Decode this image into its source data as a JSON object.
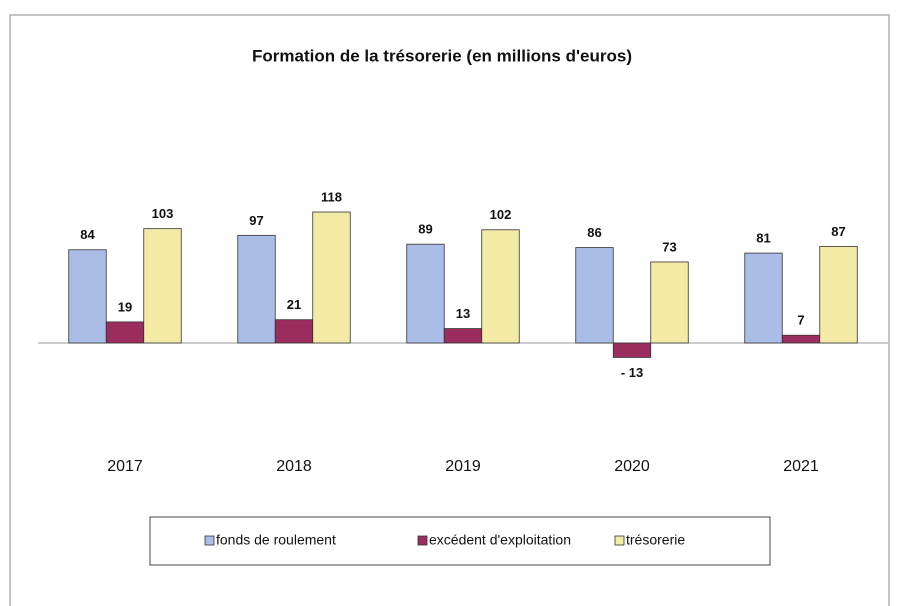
{
  "chart_data": {
    "type": "bar",
    "title": "Formation  de la trésorerie  (en millions  d'euros)",
    "categories": [
      "2017",
      "2018",
      "2019",
      "2020",
      "2021"
    ],
    "series": [
      {
        "name": "fonds de roulement",
        "color": "#a9bde6",
        "values": [
          84,
          97,
          89,
          86,
          81
        ]
      },
      {
        "name": "excédent d'exploitation",
        "color": "#9b2d5e",
        "values": [
          19,
          21,
          13,
          -13,
          7
        ],
        "value_labels": [
          "19",
          "21",
          "13",
          "- 13",
          "7"
        ]
      },
      {
        "name": "trésorerie",
        "color": "#f3eaa6",
        "values": [
          103,
          118,
          102,
          73,
          87
        ]
      }
    ],
    "legend": "bottom"
  }
}
